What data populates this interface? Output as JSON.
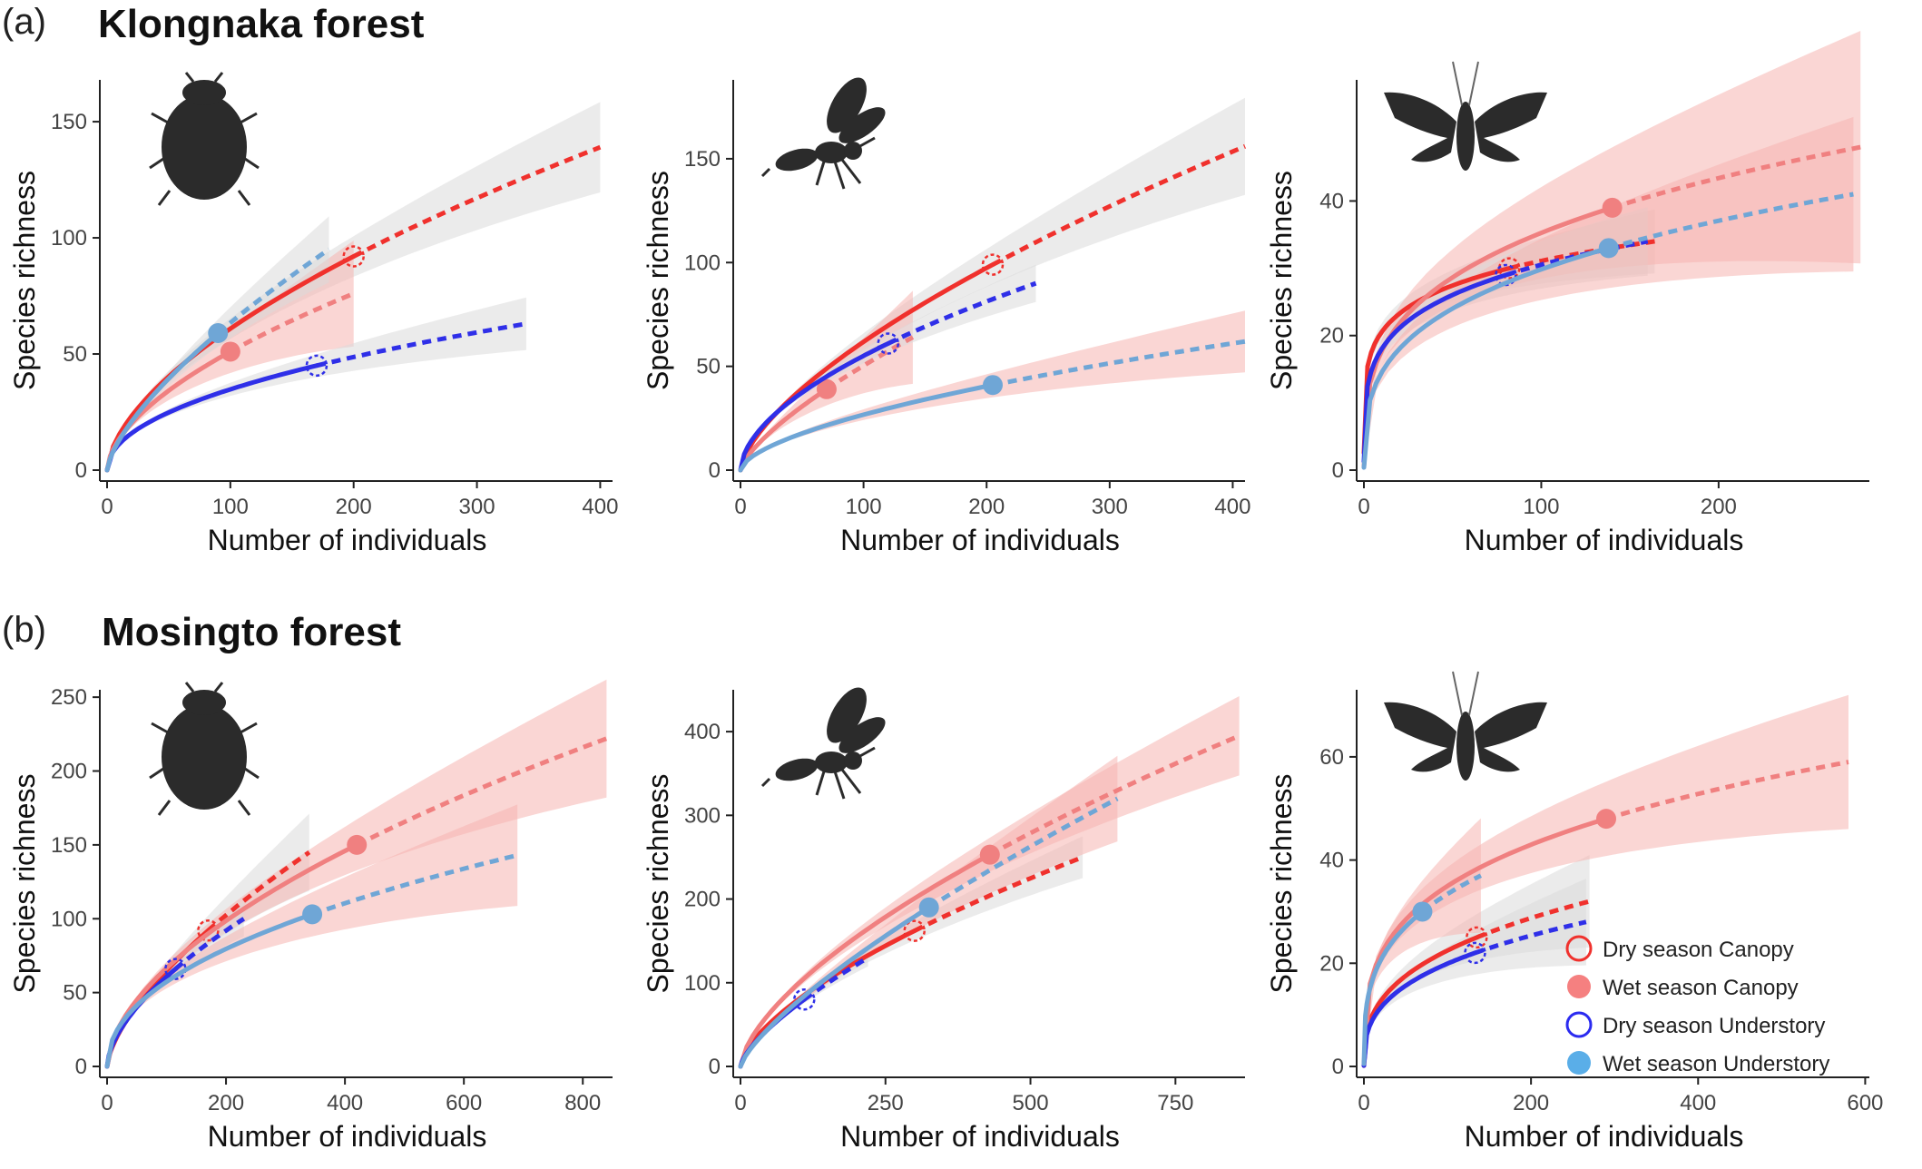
{
  "figure": {
    "rows": [
      {
        "letter": "(a)",
        "title": "Klongnaka forest"
      },
      {
        "letter": "(b)",
        "title": "Mosingto forest"
      }
    ]
  },
  "legend": [
    {
      "label": "Dry season Canopy",
      "color": "#f0312d",
      "filled": false
    },
    {
      "label": "Wet season Canopy",
      "color": "#f58080",
      "filled": true
    },
    {
      "label": "Dry season Understory",
      "color": "#2b2bf0",
      "filled": false
    },
    {
      "label": "Wet season Understory",
      "color": "#5aaee8",
      "filled": true
    }
  ],
  "colors": {
    "dry_canopy": "#f0312d",
    "wet_canopy": "#f08080",
    "dry_understory": "#2f2fe8",
    "wet_understory": "#6fa6d6",
    "band_red": "#f5b5b0",
    "band_grey": "#dadada",
    "silhouette": "#2b2b2b"
  },
  "chart_data": [
    {
      "type": "line",
      "row": "(a)",
      "taxon_icon": "beetle-icon",
      "xlabel": "Number of individuals",
      "ylabel": "Species richness",
      "xlim": [
        0,
        410
      ],
      "ylim": [
        0,
        168
      ],
      "xticks": [
        0,
        100,
        200,
        300,
        400
      ],
      "yticks": [
        0,
        50,
        100,
        150
      ],
      "series": [
        {
          "key": "dry_canopy",
          "obs": [
            200,
            92
          ],
          "end": [
            400,
            139
          ],
          "band": "grey",
          "band_w": [
            0.05,
            0.14
          ]
        },
        {
          "key": "wet_canopy",
          "obs": [
            100,
            51
          ],
          "end": [
            200,
            76
          ],
          "band": "red",
          "band_w": [
            0.06,
            0.3
          ]
        },
        {
          "key": "dry_understory",
          "obs": [
            170,
            45
          ],
          "end": [
            340,
            63
          ],
          "band": "grey",
          "band_w": [
            0.04,
            0.18
          ]
        },
        {
          "key": "wet_understory",
          "obs": [
            90,
            59
          ],
          "end": [
            180,
            95
          ],
          "band": "grey",
          "band_w": [
            0.05,
            0.15
          ]
        }
      ]
    },
    {
      "type": "line",
      "row": "(a)",
      "taxon_icon": "wasp-icon",
      "xlabel": "Number of individuals",
      "ylabel": "Species richness",
      "xlim": [
        0,
        410
      ],
      "ylim": [
        0,
        188
      ],
      "xticks": [
        0,
        100,
        200,
        300,
        400
      ],
      "yticks": [
        0,
        50,
        100,
        150
      ],
      "series": [
        {
          "key": "dry_canopy",
          "obs": [
            205,
            99
          ],
          "end": [
            410,
            156
          ],
          "band": "grey",
          "band_w": [
            0.04,
            0.15
          ]
        },
        {
          "key": "wet_canopy",
          "obs": [
            70,
            39
          ],
          "end": [
            140,
            64
          ],
          "band": "red",
          "band_w": [
            0.05,
            0.35
          ]
        },
        {
          "key": "dry_understory",
          "obs": [
            120,
            61
          ],
          "end": [
            240,
            90
          ],
          "band": "grey",
          "band_w": [
            0.04,
            0.1
          ]
        },
        {
          "key": "wet_understory",
          "obs": [
            205,
            41
          ],
          "end": [
            410,
            62
          ],
          "band": "red",
          "band_w": [
            0.05,
            0.24
          ]
        }
      ]
    },
    {
      "type": "line",
      "row": "(a)",
      "taxon_icon": "moth-icon",
      "xlabel": "Number of individuals",
      "ylabel": "Species richness",
      "xlim": [
        0,
        285
      ],
      "ylim": [
        0,
        58
      ],
      "xticks": [
        0,
        100,
        200
      ],
      "yticks": [
        0,
        20,
        40
      ],
      "series": [
        {
          "key": "dry_canopy",
          "obs": [
            82,
            30
          ],
          "end": [
            164,
            34
          ],
          "band": "grey",
          "band_w": [
            0.06,
            0.14
          ]
        },
        {
          "key": "wet_canopy",
          "obs": [
            140,
            39
          ],
          "end": [
            280,
            48
          ],
          "band": "red",
          "band_w": [
            0.1,
            0.36
          ]
        },
        {
          "key": "dry_understory",
          "obs": [
            80,
            29
          ],
          "end": [
            160,
            34
          ],
          "band": "grey",
          "band_w": [
            0.06,
            0.15
          ]
        },
        {
          "key": "wet_understory",
          "obs": [
            138,
            33
          ],
          "end": [
            276,
            41
          ],
          "band": "red",
          "band_w": [
            0.08,
            0.28
          ]
        }
      ]
    },
    {
      "type": "line",
      "row": "(b)",
      "taxon_icon": "beetle-icon",
      "xlabel": "Number of individuals",
      "ylabel": "Species richness",
      "xlim": [
        0,
        850
      ],
      "ylim": [
        0,
        255
      ],
      "xticks": [
        0,
        200,
        400,
        600,
        800
      ],
      "yticks": [
        0,
        50,
        100,
        150,
        200,
        250
      ],
      "series": [
        {
          "key": "dry_canopy",
          "obs": [
            170,
            92
          ],
          "end": [
            340,
            145
          ],
          "band": "grey",
          "band_w": [
            0.04,
            0.18
          ]
        },
        {
          "key": "wet_canopy",
          "obs": [
            420,
            150
          ],
          "end": [
            840,
            222
          ],
          "band": "red",
          "band_w": [
            0.05,
            0.18
          ]
        },
        {
          "key": "dry_understory",
          "obs": [
            115,
            66
          ],
          "end": [
            230,
            100
          ],
          "band": "grey",
          "band_w": [
            0.03,
            0.12
          ]
        },
        {
          "key": "wet_understory",
          "obs": [
            345,
            103
          ],
          "end": [
            690,
            143
          ],
          "band": "red",
          "band_w": [
            0.05,
            0.24
          ]
        }
      ]
    },
    {
      "type": "line",
      "row": "(b)",
      "taxon_icon": "wasp-icon",
      "xlabel": "Number of individuals",
      "ylabel": "Species richness",
      "xlim": [
        0,
        870
      ],
      "ylim": [
        0,
        450
      ],
      "xticks": [
        0,
        250,
        500,
        750
      ],
      "yticks": [
        0,
        100,
        200,
        300,
        400
      ],
      "series": [
        {
          "key": "dry_canopy",
          "obs": [
            300,
            162
          ],
          "end": [
            590,
            250
          ],
          "band": "grey",
          "band_w": [
            0.04,
            0.1
          ]
        },
        {
          "key": "wet_canopy",
          "obs": [
            430,
            253
          ],
          "end": [
            860,
            395
          ],
          "band": "red",
          "band_w": [
            0.04,
            0.12
          ]
        },
        {
          "key": "dry_understory",
          "obs": [
            110,
            80
          ],
          "end": [
            220,
            130
          ],
          "band": "grey",
          "band_w": [
            0.03,
            0.08
          ]
        },
        {
          "key": "wet_understory",
          "obs": [
            325,
            190
          ],
          "end": [
            650,
            320
          ],
          "band": "red",
          "band_w": [
            0.04,
            0.16
          ]
        }
      ]
    },
    {
      "type": "line",
      "row": "(b)",
      "taxon_icon": "moth-icon",
      "xlabel": "Number of individuals",
      "ylabel": "Species richness",
      "xlim": [
        0,
        605
      ],
      "ylim": [
        0,
        73
      ],
      "xticks": [
        0,
        200,
        400,
        600
      ],
      "yticks": [
        0,
        20,
        40,
        60
      ],
      "series": [
        {
          "key": "dry_canopy",
          "obs": [
            135,
            25
          ],
          "end": [
            270,
            32
          ],
          "band": "grey",
          "band_w": [
            0.08,
            0.28
          ]
        },
        {
          "key": "wet_canopy",
          "obs": [
            290,
            48
          ],
          "end": [
            580,
            59
          ],
          "band": "red",
          "band_w": [
            0.08,
            0.22
          ]
        },
        {
          "key": "dry_understory",
          "obs": [
            133,
            22
          ],
          "end": [
            266,
            28
          ],
          "band": "grey",
          "band_w": [
            0.08,
            0.3
          ]
        },
        {
          "key": "wet_understory",
          "obs": [
            70,
            30
          ],
          "end": [
            140,
            37
          ],
          "band": "red",
          "band_w": [
            0.1,
            0.3
          ]
        }
      ]
    }
  ]
}
